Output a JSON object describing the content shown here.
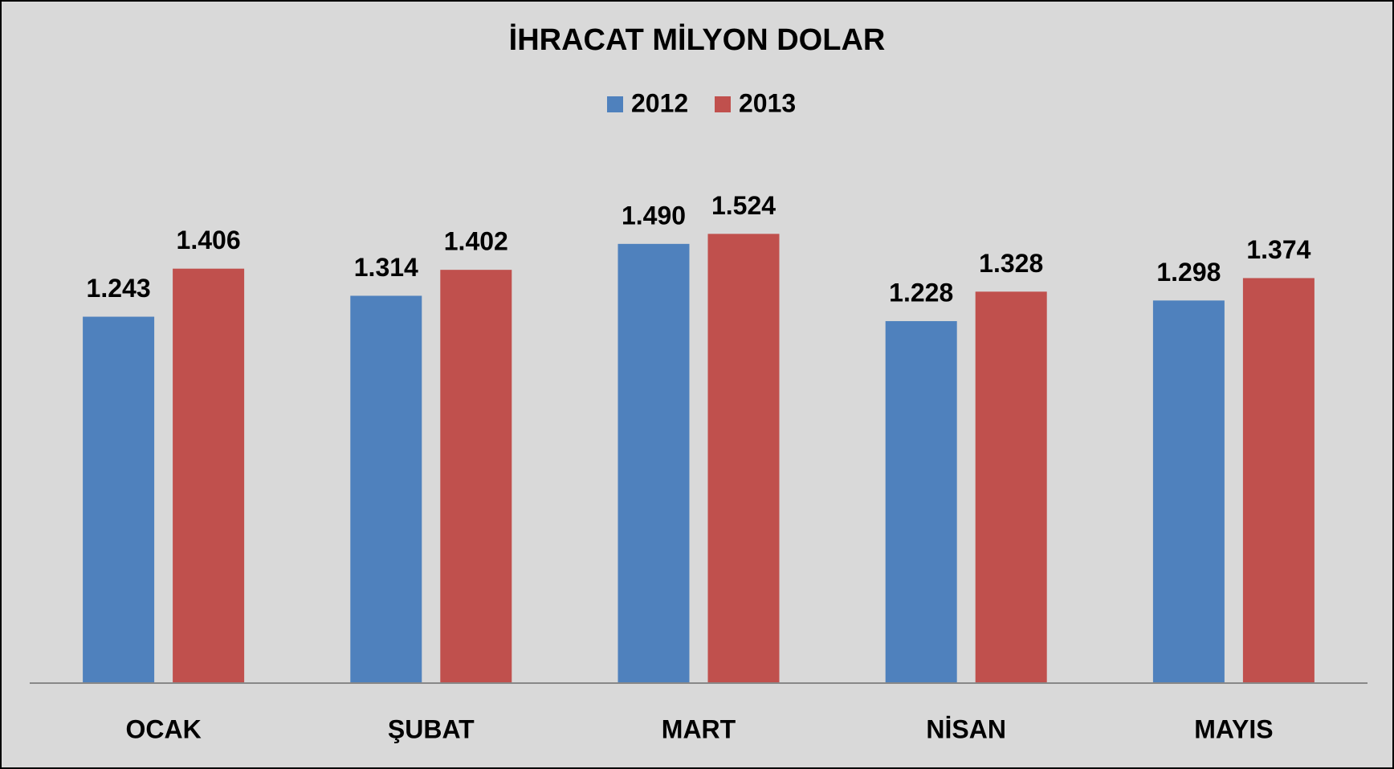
{
  "chart_data": {
    "type": "bar",
    "title": "İHRACAT MİLYON DOLAR",
    "categories": [
      "OCAK",
      "ŞUBAT",
      "MART",
      "NİSAN",
      "MAYIS"
    ],
    "series": [
      {
        "name": "2012",
        "color": "#4f81bd",
        "values": [
          1243,
          1314,
          1490,
          1228,
          1298
        ],
        "value_labels": [
          "1.243",
          "1.314",
          "1.490",
          "1.228",
          "1.298"
        ]
      },
      {
        "name": "2013",
        "color": "#c0504d",
        "values": [
          1406,
          1402,
          1524,
          1328,
          1374
        ],
        "value_labels": [
          "1.406",
          "1.402",
          "1.524",
          "1.328",
          "1.374"
        ]
      }
    ],
    "ylim": [
      0,
      1800
    ],
    "legend": "top"
  }
}
